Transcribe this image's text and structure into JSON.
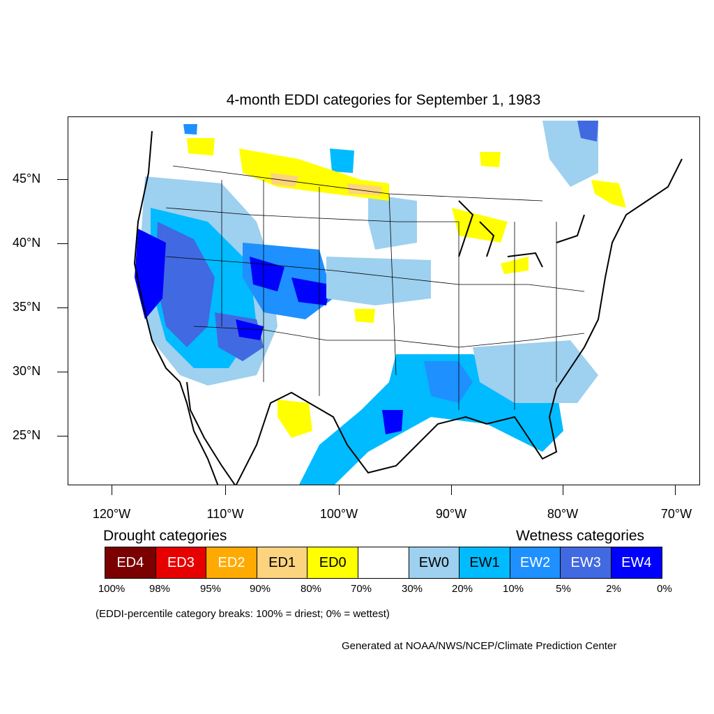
{
  "map": {
    "title": "4-month EDDI categories for September 1, 1983",
    "lat_labels": [
      "45°N",
      "40°N",
      "35°N",
      "30°N",
      "25°N"
    ],
    "lon_labels": [
      "120°W",
      "110°W",
      "100°W",
      "90°W",
      "80°W",
      "70°W"
    ]
  },
  "legend": {
    "drought_heading": "Drought categories",
    "wetness_heading": "Wetness categories",
    "categories": [
      {
        "label": "ED4",
        "color": "#7b0000"
      },
      {
        "label": "ED3",
        "color": "#e60000"
      },
      {
        "label": "ED2",
        "color": "#ffaa00"
      },
      {
        "label": "ED1",
        "color": "#fcd37f"
      },
      {
        "label": "ED0",
        "color": "#ffff00"
      },
      {
        "label": "",
        "color": "#ffffff"
      },
      {
        "label": "EW0",
        "color": "#9ed0ef"
      },
      {
        "label": "EW1",
        "color": "#00bbff"
      },
      {
        "label": "EW2",
        "color": "#1e90ff"
      },
      {
        "label": "EW3",
        "color": "#4169e1"
      },
      {
        "label": "EW4",
        "color": "#0000ff"
      }
    ],
    "percentiles": [
      "100%",
      "98%",
      "95%",
      "90%",
      "80%",
      "70%",
      "30%",
      "20%",
      "10%",
      "5%",
      "2%",
      "0%"
    ],
    "note": "(EDDI-percentile category breaks: 100% = driest; 0% = wettest)"
  },
  "credit": "Generated at NOAA/NWS/NCEP/Climate Prediction Center"
}
